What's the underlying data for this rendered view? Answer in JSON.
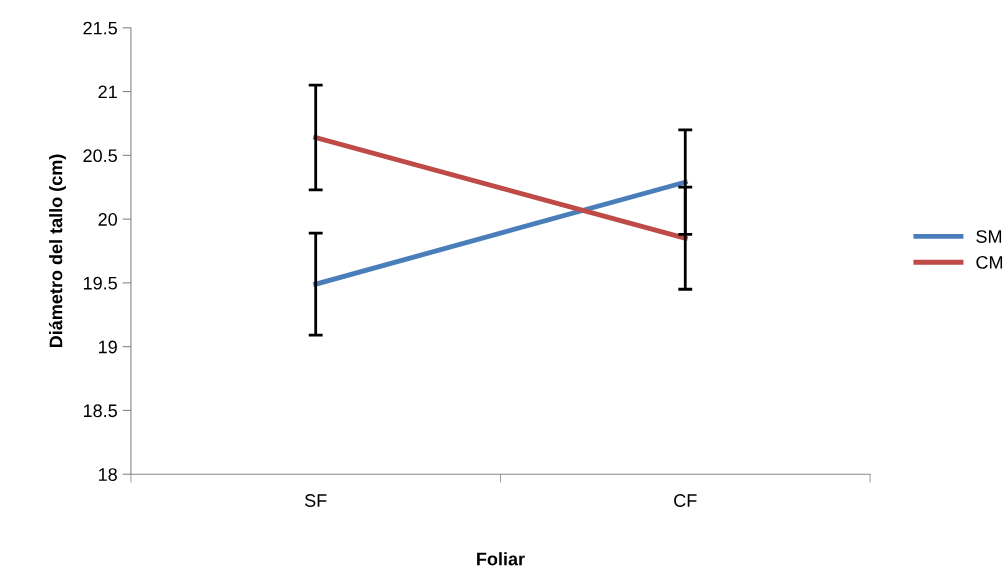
{
  "chart_data": {
    "type": "line",
    "xlabel": "Foliar",
    "ylabel": "Diámetro del tallo (cm)",
    "categories": [
      "SF",
      "CF"
    ],
    "series": [
      {
        "name": "SM",
        "color": "#4a7ebb",
        "values": [
          19.49,
          20.29
        ],
        "errors": [
          0.4,
          0.41
        ]
      },
      {
        "name": "CM",
        "color": "#be4b48",
        "values": [
          20.64,
          19.85
        ],
        "errors": [
          0.41,
          0.4
        ]
      }
    ],
    "ylim": [
      18,
      21.5
    ],
    "yticks": [
      18,
      18.5,
      19,
      19.5,
      20,
      20.5,
      21,
      21.5
    ],
    "grid": false,
    "legend": "right",
    "marker": "none",
    "line_style": "solid"
  }
}
